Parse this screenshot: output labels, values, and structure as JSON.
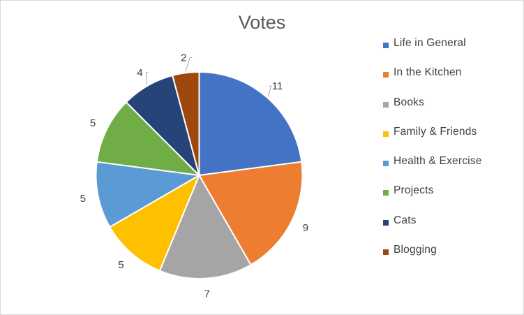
{
  "chart_data": {
    "type": "pie",
    "title": "Votes",
    "categories": [
      "Life in General",
      "In the Kitchen",
      "Books",
      "Family & Friends",
      "Health & Exercise",
      "Projects",
      "Cats",
      "Blogging"
    ],
    "values": [
      11,
      9,
      7,
      5,
      5,
      5,
      4,
      2
    ],
    "colors": [
      "#4472c4",
      "#ed7d31",
      "#a5a5a5",
      "#ffc000",
      "#5b9bd5",
      "#70ad47",
      "#264478",
      "#9e480e"
    ],
    "data_labels": [
      "11",
      "9",
      "7",
      "5",
      "5",
      "5",
      "4",
      "2"
    ],
    "legend_position": "right",
    "start_angle": "12 o'clock",
    "direction": "clockwise"
  }
}
